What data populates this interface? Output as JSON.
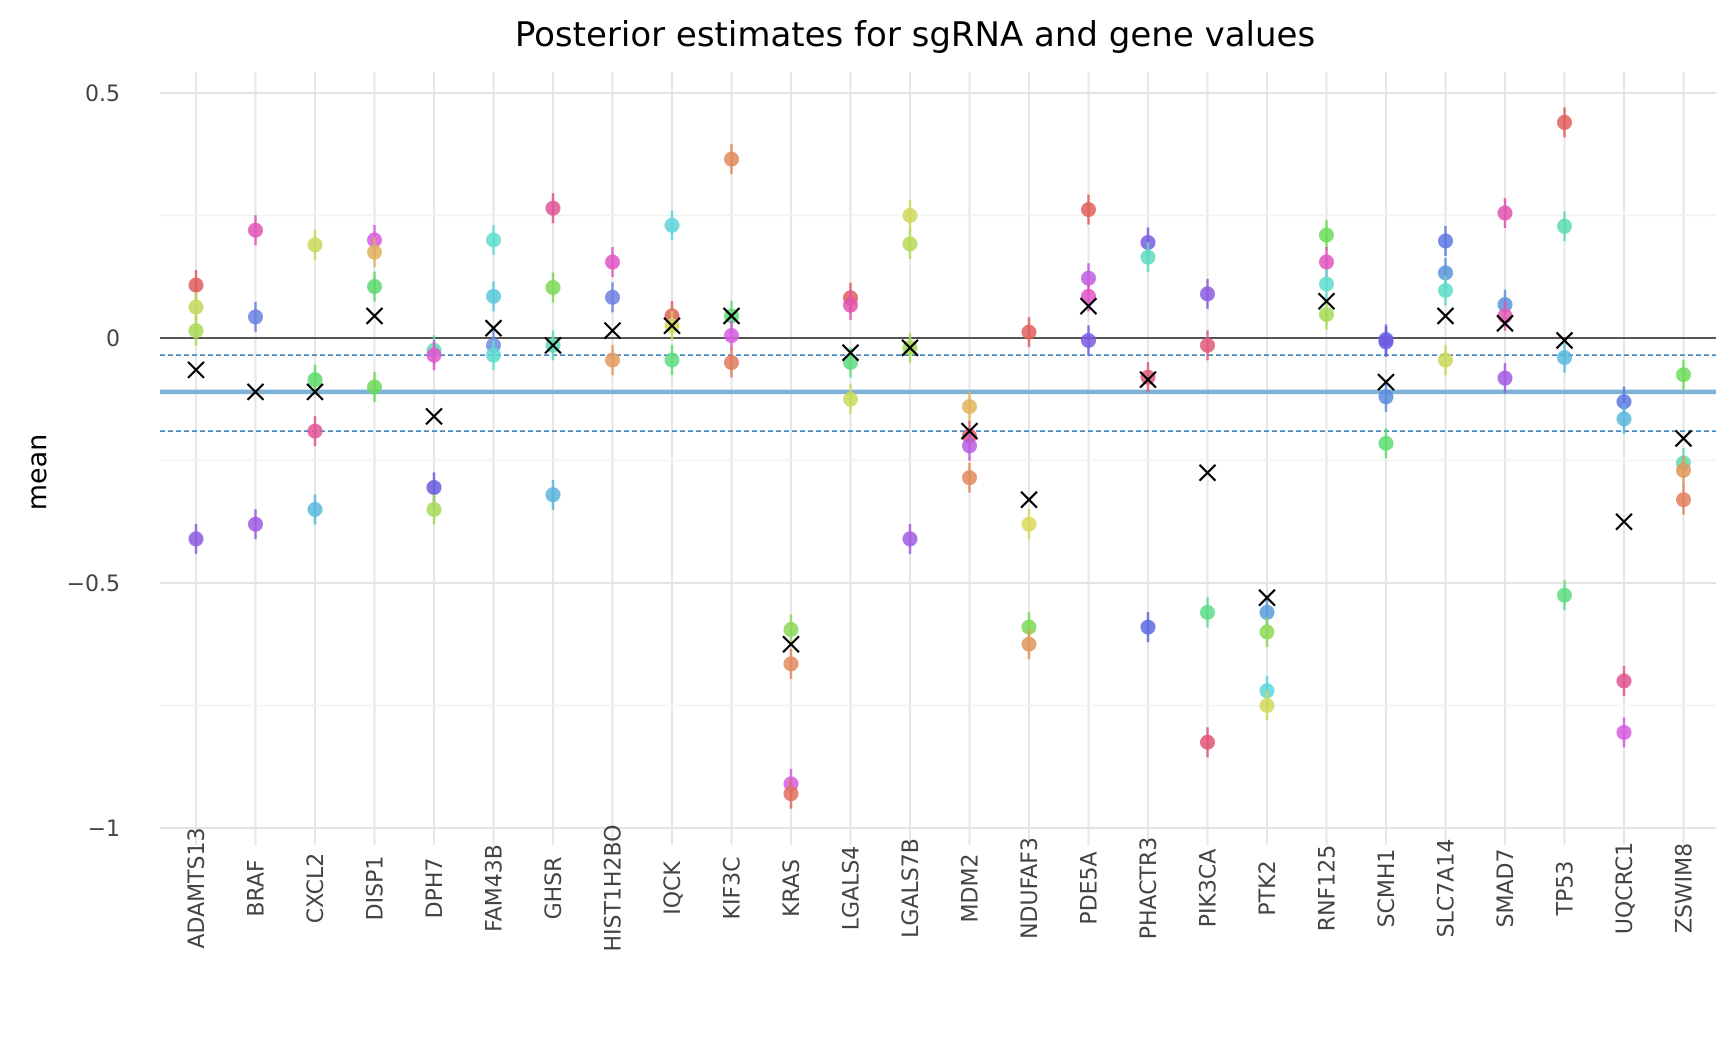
{
  "chart_data": {
    "type": "scatter",
    "title": "Posterior estimates for sgRNA and gene values",
    "xlabel": "",
    "ylabel": "mean",
    "ylim": [
      -1.05,
      0.55
    ],
    "yticks": [
      0.5,
      0,
      -0.5,
      -1
    ],
    "ytick_labels": [
      "0.5",
      "0",
      "−0.5",
      "−1"
    ],
    "grid": true,
    "legend": "none",
    "reference_lines": {
      "zero": 0,
      "overall_mean": -0.11,
      "overall_interval": [
        -0.19,
        -0.035
      ]
    },
    "colors": {
      "zero_line": "#555555",
      "mean_line": "#7fb2d6",
      "interval_line": "#2c7bb6",
      "gene_marker": "#000000"
    },
    "categories": [
      "ADAMTS13",
      "BRAF",
      "CXCL2",
      "DISP1",
      "DPH7",
      "FAM43B",
      "GHSR",
      "HIST1H2BO",
      "IQCK",
      "KIF3C",
      "KRAS",
      "LGALS4",
      "LGALS7B",
      "MDM2",
      "NDUFAF3",
      "PDE5A",
      "PHACTR3",
      "PIK3CA",
      "PTK2",
      "RNF125",
      "SCMH1",
      "SLC7A14",
      "SMAD7",
      "TP53",
      "UQCRC1",
      "ZSWIM8"
    ],
    "gene_means": [
      -0.065,
      -0.11,
      -0.11,
      0.045,
      -0.16,
      0.02,
      -0.015,
      0.015,
      0.025,
      0.045,
      -0.625,
      -0.03,
      -0.02,
      -0.19,
      -0.33,
      0.065,
      -0.085,
      -0.275,
      -0.53,
      0.075,
      -0.09,
      0.045,
      0.03,
      -0.005,
      -0.375,
      -0.205
    ],
    "sgrna_points": [
      {
        "category": "ADAMTS13",
        "values": [
          0.108,
          0.063,
          0.015,
          -0.41
        ],
        "colors": [
          "#e05c5c",
          "#c2d85a",
          "#a8d858",
          "#8b5cdc"
        ]
      },
      {
        "category": "BRAF",
        "values": [
          0.22,
          0.043,
          -0.38
        ],
        "colors": [
          "#e055b5",
          "#6c7fe0",
          "#9c5ce0"
        ]
      },
      {
        "category": "CXCL2",
        "values": [
          0.19,
          -0.085,
          -0.19,
          -0.35
        ],
        "colors": [
          "#c8d85c",
          "#5edc6a",
          "#e05595",
          "#5ab8dc"
        ]
      },
      {
        "category": "DISP1",
        "values": [
          0.2,
          0.175,
          0.105,
          -0.1
        ],
        "colors": [
          "#d65ce0",
          "#e0b05c",
          "#5ad86c",
          "#6cd85a"
        ]
      },
      {
        "category": "DPH7",
        "values": [
          -0.025,
          -0.035,
          -0.305,
          -0.35
        ],
        "colors": [
          "#5edcb0",
          "#e055d0",
          "#6a5ce0",
          "#a8d858"
        ]
      },
      {
        "category": "FAM43B",
        "values": [
          0.2,
          0.085,
          -0.015,
          -0.035
        ],
        "colors": [
          "#5edccc",
          "#5ac8dc",
          "#6c8ce0",
          "#5edcd0"
        ]
      },
      {
        "category": "GHSR",
        "values": [
          0.265,
          0.103,
          -0.015,
          -0.32
        ],
        "colors": [
          "#e05595",
          "#7cd858",
          "#5edcb8",
          "#5ab4dc"
        ]
      },
      {
        "category": "HIST1H2BO",
        "values": [
          0.155,
          0.083,
          -0.045
        ],
        "colors": [
          "#e055c8",
          "#6c7fe0",
          "#e09a5c"
        ]
      },
      {
        "category": "IQCK",
        "values": [
          0.23,
          0.045,
          0.025,
          -0.045
        ],
        "colors": [
          "#5ed4dc",
          "#e0605c",
          "#d0d85a",
          "#5edc80"
        ]
      },
      {
        "category": "KIF3C",
        "values": [
          0.365,
          0.045,
          0.005,
          -0.05
        ],
        "colors": [
          "#e08a5c",
          "#5edc7a",
          "#d65ce0",
          "#e07a5c"
        ]
      },
      {
        "category": "KRAS",
        "values": [
          -0.595,
          -0.665,
          -0.91,
          -0.93
        ],
        "colors": [
          "#8cd858",
          "#e08a5c",
          "#d65ce0",
          "#e0705c"
        ]
      },
      {
        "category": "LGALS4",
        "values": [
          0.082,
          0.067,
          -0.05,
          -0.125
        ],
        "colors": [
          "#e05c5c",
          "#e055b0",
          "#5edc80",
          "#c8d85c"
        ]
      },
      {
        "category": "LGALS7B",
        "values": [
          0.25,
          0.192,
          -0.02,
          -0.41
        ],
        "colors": [
          "#d0d85c",
          "#b8d85a",
          "#a8d858",
          "#a05ce0"
        ]
      },
      {
        "category": "MDM2",
        "values": [
          -0.14,
          -0.2,
          -0.22,
          -0.285
        ],
        "colors": [
          "#e0b45c",
          "#e05c6c",
          "#b85ce0",
          "#e08a5c"
        ]
      },
      {
        "category": "NDUFAF3",
        "values": [
          0.012,
          -0.38,
          -0.59,
          -0.625
        ],
        "colors": [
          "#e0605c",
          "#d8d85c",
          "#7cd858",
          "#e0965c"
        ]
      },
      {
        "category": "PDE5A",
        "values": [
          0.262,
          0.122,
          0.085,
          -0.005
        ],
        "colors": [
          "#e0605c",
          "#c05ce0",
          "#e055c8",
          "#7a5ce0"
        ]
      },
      {
        "category": "PHACTR3",
        "values": [
          0.195,
          0.165,
          -0.08,
          -0.59
        ],
        "colors": [
          "#7a5ce0",
          "#5edcc0",
          "#e05c7a",
          "#5c6ce0"
        ]
      },
      {
        "category": "PIK3CA",
        "values": [
          0.09,
          -0.015,
          -0.56,
          -0.825
        ],
        "colors": [
          "#8c5ce0",
          "#e05c7a",
          "#5edc8a",
          "#e05575"
        ]
      },
      {
        "category": "PTK2",
        "values": [
          -0.56,
          -0.6,
          -0.72,
          -0.75
        ],
        "colors": [
          "#5a9cdc",
          "#8cd858",
          "#5ed4dc",
          "#d0d85c"
        ]
      },
      {
        "category": "RNF125",
        "values": [
          0.21,
          0.155,
          0.11,
          0.048
        ],
        "colors": [
          "#6cdc5a",
          "#e055c0",
          "#5edccc",
          "#a8d858"
        ]
      },
      {
        "category": "SCMH1",
        "values": [
          -0.003,
          -0.008,
          -0.12,
          -0.215
        ],
        "colors": [
          "#5c6ce0",
          "#6c5ce0",
          "#5a8cdc",
          "#5edc70"
        ]
      },
      {
        "category": "SLC7A14",
        "values": [
          0.198,
          0.133,
          0.097,
          -0.045
        ],
        "colors": [
          "#5c78e0",
          "#5a94dc",
          "#5edcc4",
          "#c8d85c"
        ]
      },
      {
        "category": "SMAD7",
        "values": [
          0.255,
          0.068,
          0.045,
          -0.082
        ],
        "colors": [
          "#e055b0",
          "#5a94dc",
          "#e05cb0",
          "#a05ce0"
        ]
      },
      {
        "category": "TP53",
        "values": [
          0.44,
          0.228,
          -0.04,
          -0.525
        ],
        "colors": [
          "#e0605c",
          "#5edcb0",
          "#5ab8dc",
          "#5edc80"
        ]
      },
      {
        "category": "UQCRC1",
        "values": [
          -0.13,
          -0.165,
          -0.7,
          -0.805
        ],
        "colors": [
          "#5c78e0",
          "#5ab8dc",
          "#e05590",
          "#d65ce0"
        ]
      },
      {
        "category": "ZSWIM8",
        "values": [
          -0.075,
          -0.255,
          -0.27,
          -0.33
        ],
        "colors": [
          "#6cdc5a",
          "#5edcb0",
          "#e0965c",
          "#e0805c"
        ]
      }
    ]
  }
}
